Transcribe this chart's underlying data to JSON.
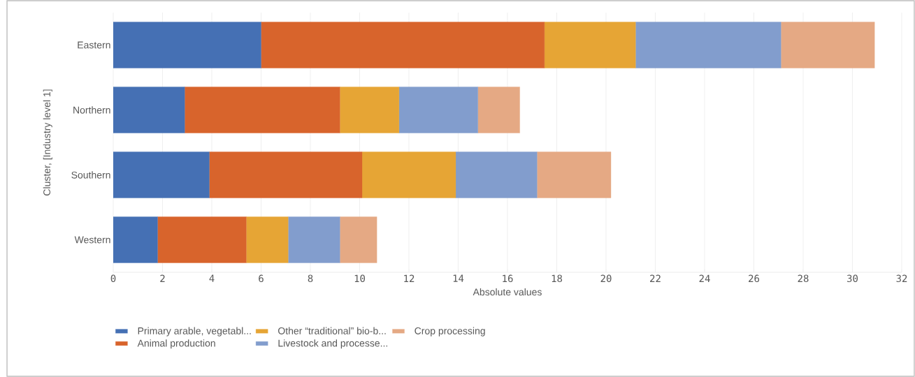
{
  "chart_data": {
    "type": "bar",
    "orientation": "horizontal",
    "stacked": true,
    "xlabel": "Absolute values",
    "ylabel": "Cluster, [Industry level 1]",
    "categories": [
      "Eastern",
      "Northern",
      "Southern",
      "Western"
    ],
    "series": [
      {
        "name": "Primary arable, vegetabl...",
        "color": "#4570b4",
        "values": [
          6.0,
          2.9,
          3.9,
          1.8
        ]
      },
      {
        "name": "Animal production",
        "color": "#d8642c",
        "values": [
          11.5,
          6.3,
          6.2,
          3.6
        ]
      },
      {
        "name": "Other “traditional” bio-b...",
        "color": "#e6a535",
        "values": [
          3.7,
          2.4,
          3.8,
          1.7
        ]
      },
      {
        "name": "Livestock and processe...",
        "color": "#829dcd",
        "values": [
          5.9,
          3.2,
          3.3,
          2.1
        ]
      },
      {
        "name": "Crop processing",
        "color": "#e5a984",
        "values": [
          3.8,
          1.7,
          3.0,
          1.5
        ]
      }
    ],
    "xlim": [
      0,
      32
    ],
    "xticks": [
      0,
      2,
      4,
      6,
      8,
      10,
      12,
      14,
      16,
      18,
      20,
      22,
      24,
      26,
      28,
      30,
      32
    ],
    "grid": "x",
    "legend": "bottom"
  }
}
